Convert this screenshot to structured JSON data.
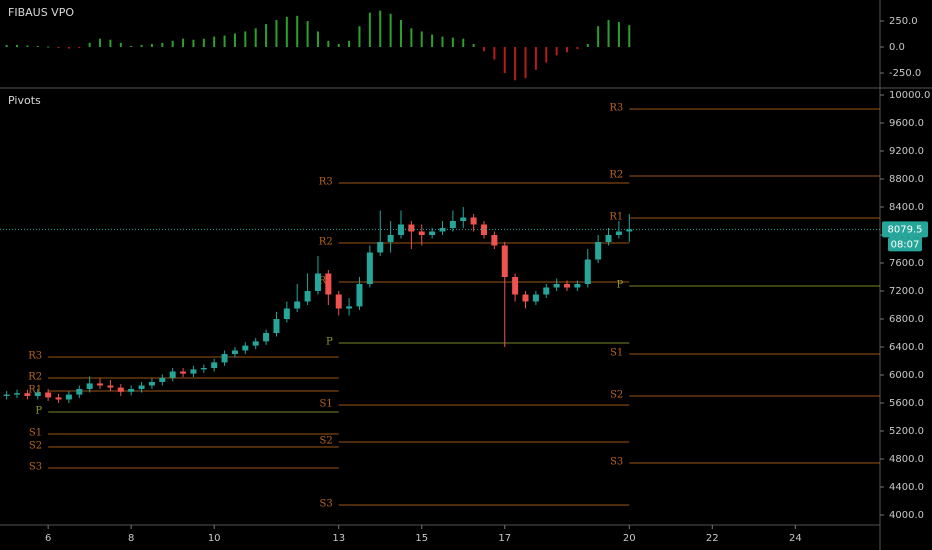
{
  "chart_data": [
    {
      "type": "bar",
      "title": "FIBAUS VPO",
      "x": [
        5.0,
        5.25,
        5.5,
        5.75,
        6.0,
        6.25,
        6.5,
        6.75,
        7.0,
        7.25,
        7.5,
        7.75,
        8.0,
        8.25,
        8.5,
        8.75,
        9.0,
        9.25,
        9.5,
        9.75,
        10.0,
        10.25,
        10.5,
        10.75,
        11.0,
        11.25,
        11.5,
        11.75,
        12.0,
        12.25,
        12.5,
        12.75,
        13.0,
        13.25,
        13.5,
        13.75,
        14.0,
        14.25,
        14.5,
        14.75,
        15.0,
        15.25,
        15.5,
        15.75,
        16.0,
        16.25,
        16.5,
        16.75,
        17.0,
        17.25,
        17.5,
        17.75,
        18.0,
        18.25,
        18.5,
        18.75,
        19.0,
        19.25,
        19.5,
        19.75,
        20.0
      ],
      "values": [
        20,
        20,
        15,
        10,
        5,
        -10,
        -15,
        -10,
        40,
        80,
        70,
        40,
        10,
        20,
        30,
        40,
        60,
        80,
        70,
        80,
        100,
        110,
        130,
        150,
        180,
        220,
        260,
        290,
        300,
        250,
        150,
        60,
        30,
        60,
        200,
        330,
        350,
        320,
        260,
        180,
        150,
        120,
        100,
        90,
        80,
        30,
        -40,
        -120,
        -250,
        -320,
        -300,
        -220,
        -150,
        -80,
        -50,
        -20,
        30,
        200,
        260,
        240,
        210
      ],
      "positive_color": "#2ea02e",
      "negative_color": "#b71c1c",
      "xlim": [
        4.84,
        26.04
      ],
      "ylim": [
        -394,
        452
      ],
      "yticks": [
        {
          "value": 250,
          "label": "250.0"
        },
        {
          "value": 0,
          "label": "0.0"
        },
        {
          "value": -250,
          "label": "-250.0"
        }
      ]
    },
    {
      "type": "candlestick",
      "title": "Pivots",
      "x": [
        5.0,
        5.25,
        5.5,
        5.75,
        6.0,
        6.25,
        6.5,
        6.75,
        7.0,
        7.25,
        7.5,
        7.75,
        8.0,
        8.25,
        8.5,
        8.75,
        9.0,
        9.25,
        9.5,
        9.75,
        10.0,
        10.25,
        10.5,
        10.75,
        11.0,
        11.25,
        11.5,
        11.75,
        12.0,
        12.25,
        12.5,
        12.75,
        13.0,
        13.25,
        13.5,
        13.75,
        14.0,
        14.25,
        14.5,
        14.75,
        15.0,
        15.25,
        15.5,
        15.75,
        16.0,
        16.25,
        16.5,
        16.75,
        17.0,
        17.25,
        17.5,
        17.75,
        18.0,
        18.25,
        18.5,
        18.75,
        19.0,
        19.25,
        19.5,
        19.75,
        20.0
      ],
      "open": [
        5700,
        5720,
        5740,
        5700,
        5750,
        5680,
        5650,
        5720,
        5800,
        5880,
        5850,
        5820,
        5760,
        5800,
        5850,
        5900,
        5960,
        6050,
        6020,
        6080,
        6100,
        6180,
        6300,
        6350,
        6420,
        6480,
        6600,
        6800,
        6950,
        7050,
        7200,
        7450,
        7150,
        6950,
        6980,
        7300,
        7750,
        7900,
        8000,
        8150,
        8050,
        8000,
        8050,
        8100,
        8200,
        8250,
        8150,
        8000,
        7850,
        7400,
        7150,
        7050,
        7150,
        7250,
        7300,
        7250,
        7300,
        7650,
        7900,
        8000,
        8050
      ],
      "high": [
        5770,
        5790,
        5790,
        5800,
        5800,
        5730,
        5770,
        5850,
        5980,
        5950,
        5930,
        5870,
        5850,
        5900,
        5950,
        6010,
        6100,
        6100,
        6130,
        6150,
        6230,
        6350,
        6400,
        6470,
        6530,
        6650,
        6900,
        7050,
        7300,
        7450,
        7700,
        7500,
        7200,
        7100,
        7400,
        7850,
        8350,
        8200,
        8350,
        8200,
        8150,
        8100,
        8200,
        8350,
        8400,
        8300,
        8200,
        8050,
        7900,
        7450,
        7200,
        7200,
        7300,
        7380,
        7350,
        7350,
        7800,
        8000,
        8100,
        8200,
        8300
      ],
      "low": [
        5650,
        5670,
        5650,
        5650,
        5630,
        5600,
        5600,
        5670,
        5750,
        5800,
        5770,
        5700,
        5710,
        5750,
        5800,
        5850,
        5910,
        5970,
        5970,
        6030,
        6050,
        6130,
        6250,
        6300,
        6370,
        6430,
        6550,
        6750,
        6900,
        7000,
        7150,
        7000,
        6850,
        6850,
        6930,
        7250,
        7700,
        7750,
        7950,
        7800,
        7850,
        7950,
        8000,
        8050,
        8100,
        8050,
        7950,
        7800,
        6400,
        7050,
        6950,
        7000,
        7100,
        7200,
        7200,
        7200,
        7250,
        7600,
        7850,
        7950,
        7900
      ],
      "close": [
        5720,
        5740,
        5700,
        5750,
        5680,
        5650,
        5720,
        5800,
        5880,
        5850,
        5820,
        5760,
        5800,
        5850,
        5900,
        5960,
        6050,
        6020,
        6080,
        6100,
        6180,
        6300,
        6350,
        6420,
        6480,
        6600,
        6800,
        6950,
        7050,
        7200,
        7450,
        7150,
        6950,
        6980,
        7300,
        7750,
        7900,
        8000,
        8150,
        8050,
        8000,
        8050,
        8100,
        8200,
        8250,
        8150,
        8000,
        7850,
        7400,
        7150,
        7050,
        7150,
        7250,
        7300,
        7250,
        7300,
        7650,
        7900,
        8000,
        8050,
        8079.5
      ],
      "up_color": "#26a69a",
      "down_color": "#ef5350",
      "countdown": "08:07",
      "pivot_labels": [
        "R3",
        "R2",
        "R1",
        "P",
        "S1",
        "S2",
        "S3"
      ],
      "pivot_color": "#b8641e",
      "pivot_p_color": "#8c9a2a",
      "pivots": [
        {
          "start": 6,
          "end": 13,
          "levels": [
            6257,
            5957,
            5771,
            5471,
            5157,
            4971,
            4671
          ]
        },
        {
          "start": 13,
          "end": 20,
          "levels": [
            8743,
            7886,
            7329,
            6457,
            5571,
            5043,
            4143
          ]
        },
        {
          "start": 20,
          "end": 26.04,
          "levels": [
            9800,
            8843,
            8243,
            7271,
            6300,
            5700,
            4743
          ]
        }
      ],
      "xlim": [
        4.84,
        26.04
      ],
      "xticks": [
        6,
        8,
        10,
        13,
        15,
        17,
        20,
        22,
        24
      ],
      "ylim": [
        3857,
        10100
      ],
      "yticks": [
        {
          "value": 4000,
          "label": "4000.0"
        },
        {
          "value": 4400,
          "label": "4400.0"
        },
        {
          "value": 4800,
          "label": "4800.0"
        },
        {
          "value": 5200,
          "label": "5200.0"
        },
        {
          "value": 5600,
          "label": "5600.0"
        },
        {
          "value": 6000,
          "label": "6000.0"
        },
        {
          "value": 6400,
          "label": "6400.0"
        },
        {
          "value": 6800,
          "label": "6800.0"
        },
        {
          "value": 7200,
          "label": "7200.0"
        },
        {
          "value": 7600,
          "label": "7600.0"
        },
        {
          "value": 8000,
          "label": "8000.0"
        },
        {
          "value": 8400,
          "label": "8400.0"
        },
        {
          "value": 8800,
          "label": "8800.0"
        },
        {
          "value": 9200,
          "label": "9200.0"
        },
        {
          "value": 9600,
          "label": "9600.0"
        },
        {
          "value": 10000,
          "label": "10000.0"
        }
      ]
    }
  ]
}
